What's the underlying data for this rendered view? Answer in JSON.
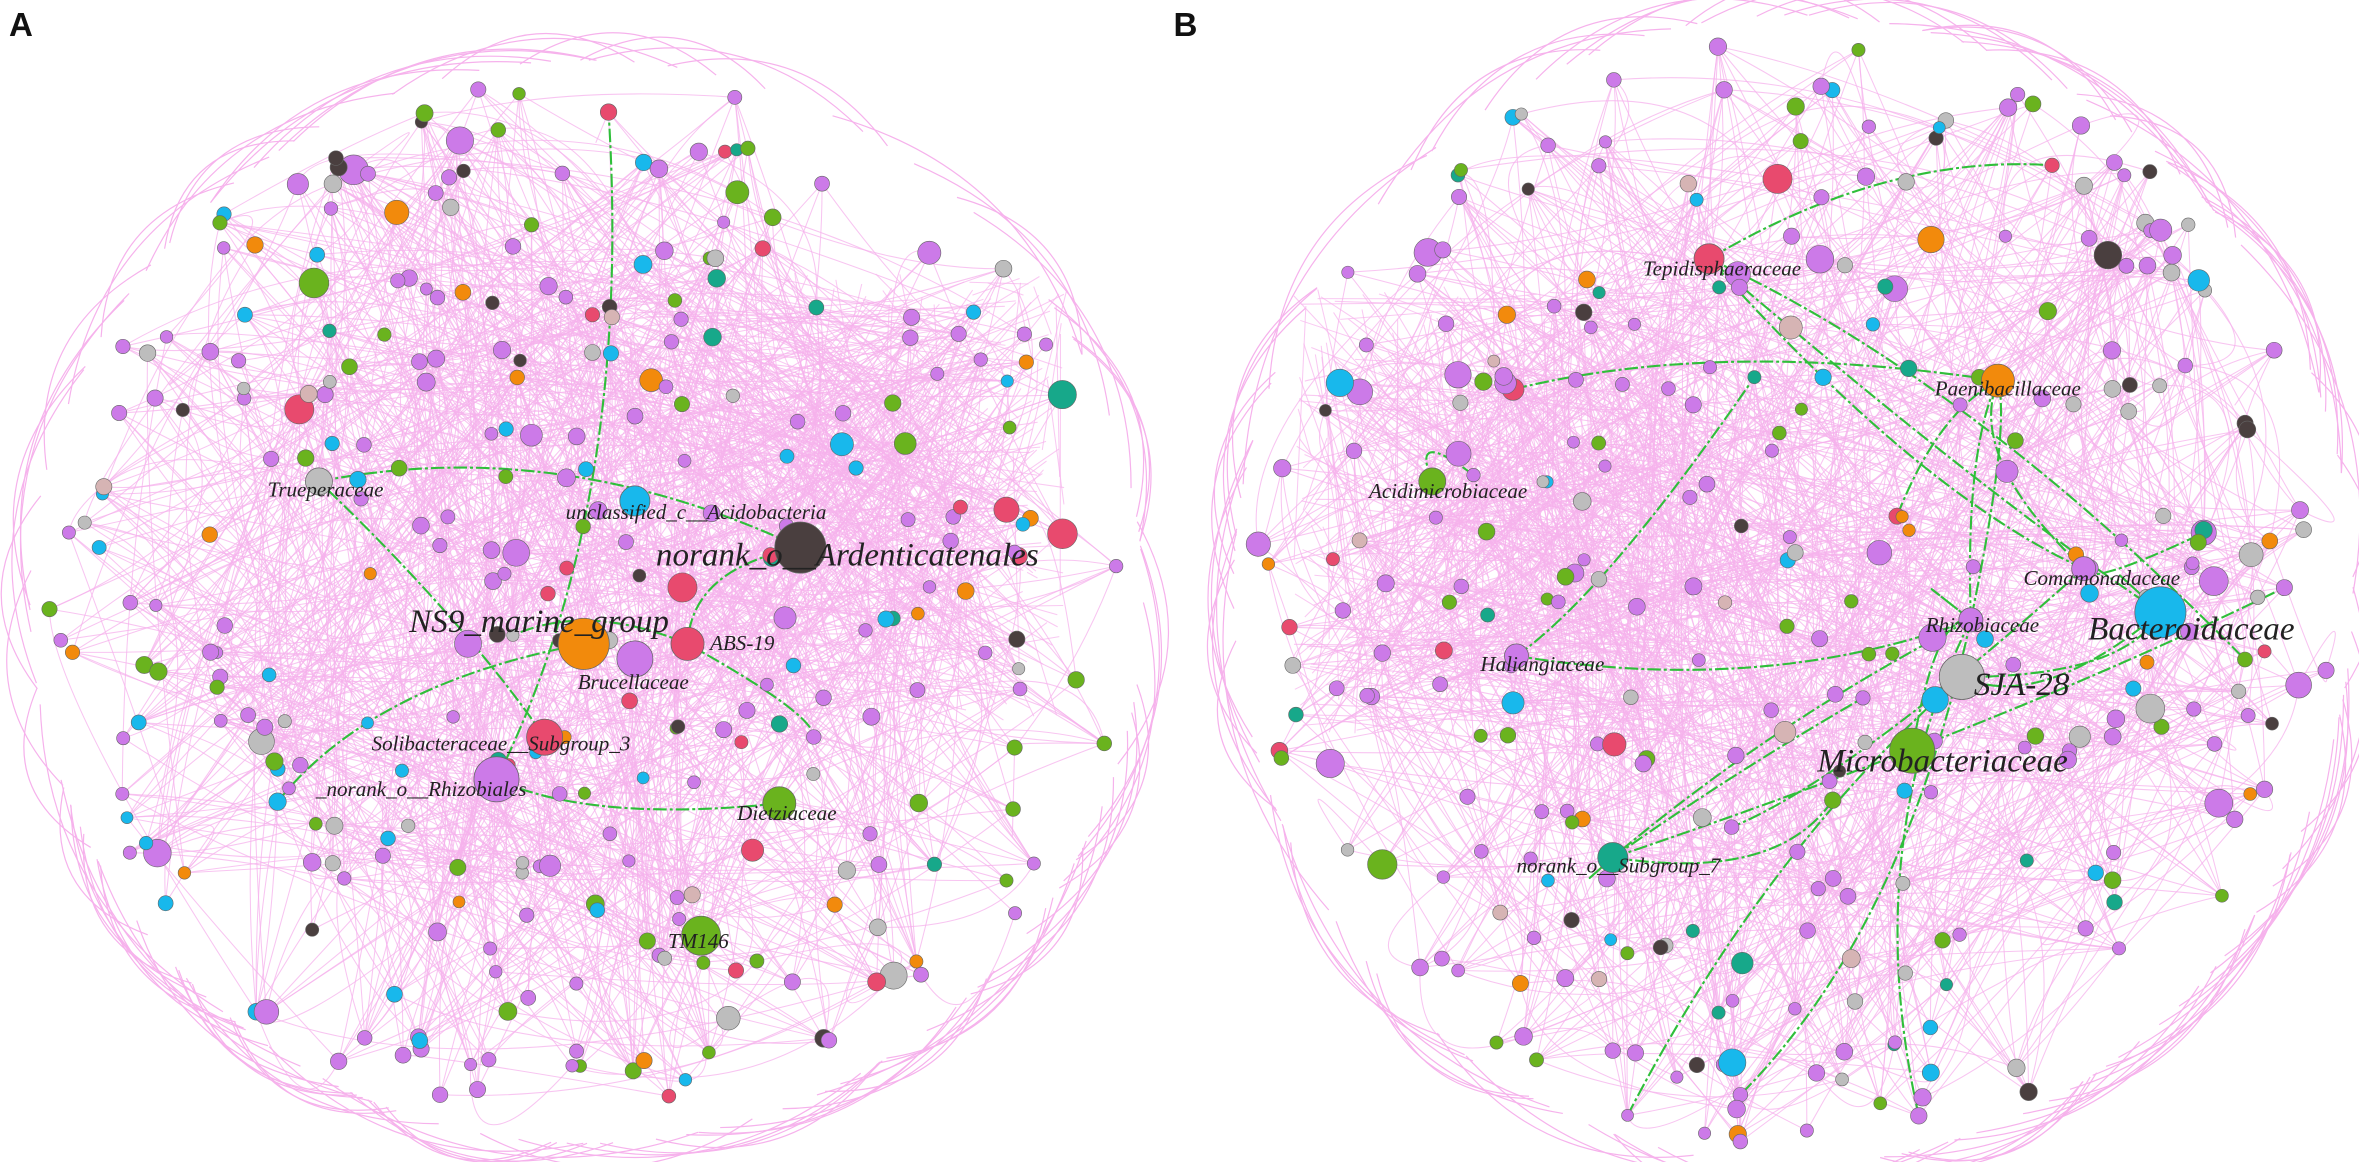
{
  "panels": [
    {
      "label": "A",
      "nodes": [
        {
          "label": "Trueperaceae"
        },
        {
          "label": "unclassified_c__Acidobacteria"
        },
        {
          "label": "norank_o__Ardenticatenales"
        },
        {
          "label": "NS9_marine_group"
        },
        {
          "label": "ABS-19"
        },
        {
          "label": "Brucellaceae"
        },
        {
          "label": "Solibacteraceae__Subgroup_3"
        },
        {
          "label": "_norank_o__Rhizobiales"
        },
        {
          "label": "Dietziaceae"
        },
        {
          "label": "TM146"
        }
      ]
    },
    {
      "label": "B",
      "nodes": [
        {
          "label": "Tepidisphaeraceae"
        },
        {
          "label": "Paenibacillaceae"
        },
        {
          "label": "Acidimicrobiaceae"
        },
        {
          "label": "Comamonadaceae"
        },
        {
          "label": "Rhizobiaceae"
        },
        {
          "label": "Bacteroidaceae"
        },
        {
          "label": "Haliangiaceae"
        },
        {
          "label": "SJA-28"
        },
        {
          "label": "Microbacteriaceae"
        },
        {
          "label": "norank_o__Subgroup_7"
        }
      ]
    }
  ]
}
